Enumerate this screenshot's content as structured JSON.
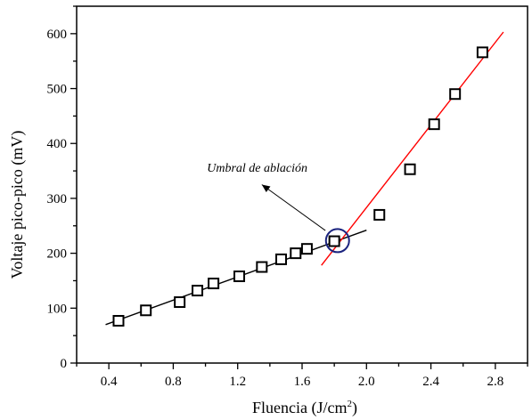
{
  "chart_data": {
    "type": "scatter",
    "title": "",
    "xlabel": "Fluencia (J/cm",
    "xlabel_superscript": "2",
    "xlabel_suffix": ")",
    "ylabel": "Voltaje pico-pico (mV)",
    "xlim": [
      0.2,
      3.0
    ],
    "ylim": [
      0,
      650
    ],
    "x_ticks": [
      {
        "value": 0.4,
        "label": "0.4"
      },
      {
        "value": 0.8,
        "label": "0.8"
      },
      {
        "value": 1.2,
        "label": "1.2"
      },
      {
        "value": 1.6,
        "label": "1.6"
      },
      {
        "value": 2.0,
        "label": "2.0"
      },
      {
        "value": 2.4,
        "label": "2.4"
      },
      {
        "value": 2.8,
        "label": "2.8"
      }
    ],
    "y_ticks": [
      {
        "value": 0,
        "label": "0"
      },
      {
        "value": 100,
        "label": "100"
      },
      {
        "value": 200,
        "label": "200"
      },
      {
        "value": 300,
        "label": "300"
      },
      {
        "value": 400,
        "label": "400"
      },
      {
        "value": 500,
        "label": "500"
      },
      {
        "value": 600,
        "label": "600"
      }
    ],
    "grid": false,
    "legend": "none",
    "series": [
      {
        "marker": "open-square",
        "color": "#000000",
        "x": [
          0.46,
          0.63,
          0.84,
          0.95,
          1.05,
          1.21,
          1.35,
          1.47,
          1.56,
          1.63,
          1.8,
          2.08,
          2.27,
          2.42,
          2.55,
          2.72
        ],
        "y": [
          77,
          96,
          111,
          132,
          145,
          158,
          175,
          189,
          200,
          208,
          222,
          270,
          353,
          435,
          490,
          566
        ]
      }
    ],
    "fit_lines": [
      {
        "color": "#000000",
        "x": [
          0.38,
          2.0
        ],
        "y": [
          70,
          242
        ]
      },
      {
        "color": "#ff0000",
        "x": [
          1.72,
          2.85
        ],
        "y": [
          178,
          603
        ]
      }
    ],
    "highlight_circle": {
      "color": "#1a237e",
      "x": 1.82,
      "y": 223
    },
    "annotation": {
      "text": "Umbral de ablación",
      "arrow_from": {
        "x": 1.8,
        "y": 222
      },
      "arrow_to": {
        "x": 1.35,
        "y": 325
      }
    }
  }
}
